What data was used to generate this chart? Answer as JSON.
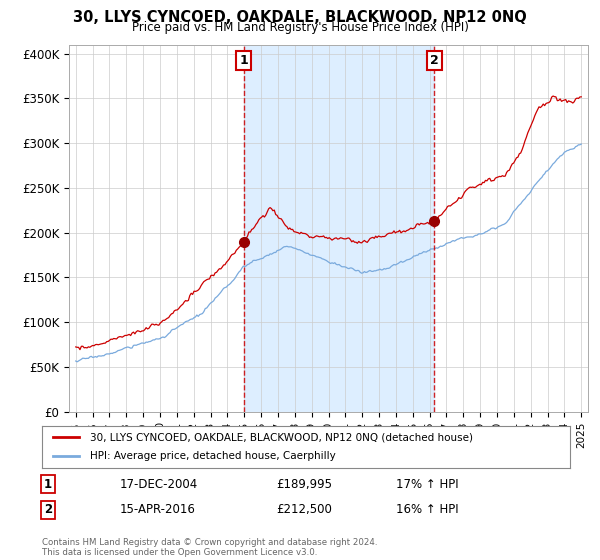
{
  "title": "30, LLYS CYNCOED, OAKDALE, BLACKWOOD, NP12 0NQ",
  "subtitle": "Price paid vs. HM Land Registry's House Price Index (HPI)",
  "ylabel_ticks": [
    "£0",
    "£50K",
    "£100K",
    "£150K",
    "£200K",
    "£250K",
    "£300K",
    "£350K",
    "£400K"
  ],
  "ytick_values": [
    0,
    50000,
    100000,
    150000,
    200000,
    250000,
    300000,
    350000,
    400000
  ],
  "ylim": [
    0,
    410000
  ],
  "xlim_start": 1994.6,
  "xlim_end": 2025.4,
  "hpi_color": "#7aaadd",
  "price_color": "#cc0000",
  "shade_color": "#ddeeff",
  "marker1_x": 2004.96,
  "marker1_y": 189995,
  "marker2_x": 2016.29,
  "marker2_y": 212500,
  "legend_line1": "30, LLYS CYNCOED, OAKDALE, BLACKWOOD, NP12 0NQ (detached house)",
  "legend_line2": "HPI: Average price, detached house, Caerphilly",
  "marker1_date": "17-DEC-2004",
  "marker1_price": "£189,995",
  "marker1_hpi": "17% ↑ HPI",
  "marker2_date": "15-APR-2016",
  "marker2_price": "£212,500",
  "marker2_hpi": "16% ↑ HPI",
  "footer": "Contains HM Land Registry data © Crown copyright and database right 2024.\nThis data is licensed under the Open Government Licence v3.0.",
  "xtick_years": [
    1995,
    1996,
    1997,
    1998,
    1999,
    2000,
    2001,
    2002,
    2003,
    2004,
    2005,
    2006,
    2007,
    2008,
    2009,
    2010,
    2011,
    2012,
    2013,
    2014,
    2015,
    2016,
    2017,
    2018,
    2019,
    2020,
    2021,
    2022,
    2023,
    2024,
    2025
  ]
}
